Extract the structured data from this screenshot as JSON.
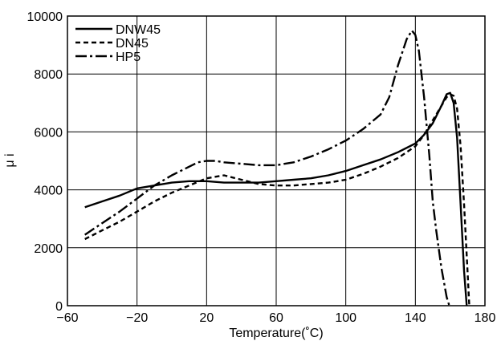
{
  "chart_data": {
    "type": "line",
    "title": "",
    "xlabel": "Temperature(˚C)",
    "ylabel": "μ i",
    "xlim": [
      -60,
      180
    ],
    "ylim": [
      0,
      10000
    ],
    "x_ticks": [
      "−60",
      "−20",
      "20",
      "60",
      "100",
      "140",
      "180"
    ],
    "x_tick_values": [
      -60,
      -20,
      20,
      60,
      100,
      140,
      180
    ],
    "y_ticks": [
      "0",
      "2000",
      "4000",
      "6000",
      "8000",
      "10000"
    ],
    "y_tick_values": [
      0,
      2000,
      4000,
      6000,
      8000,
      10000
    ],
    "grid": true,
    "legend_position": "top-left",
    "series": [
      {
        "name": "DNW45",
        "dash": "solid",
        "x": [
          -50,
          -40,
          -30,
          -20,
          -10,
          0,
          10,
          20,
          30,
          40,
          50,
          60,
          70,
          80,
          90,
          100,
          110,
          120,
          130,
          140,
          145,
          150,
          155,
          158,
          160,
          162,
          164,
          166,
          168,
          169.5
        ],
        "y": [
          3400,
          3600,
          3800,
          4050,
          4150,
          4250,
          4300,
          4300,
          4250,
          4250,
          4250,
          4300,
          4350,
          4400,
          4500,
          4650,
          4850,
          5050,
          5300,
          5600,
          5900,
          6300,
          6900,
          7300,
          7350,
          7000,
          5800,
          3500,
          1200,
          0
        ]
      },
      {
        "name": "DN45",
        "dash": "dashed",
        "x": [
          -50,
          -40,
          -30,
          -20,
          -10,
          0,
          10,
          20,
          30,
          40,
          50,
          60,
          70,
          80,
          90,
          100,
          110,
          120,
          130,
          140,
          145,
          150,
          155,
          158,
          160,
          162,
          164,
          166,
          168,
          170,
          171
        ],
        "y": [
          2300,
          2600,
          2900,
          3250,
          3600,
          3900,
          4150,
          4400,
          4500,
          4350,
          4200,
          4150,
          4150,
          4200,
          4250,
          4350,
          4550,
          4800,
          5100,
          5500,
          5900,
          6400,
          6900,
          7200,
          7300,
          7250,
          6800,
          5500,
          3500,
          1200,
          0
        ]
      },
      {
        "name": "HP5",
        "dash": "dash-dot",
        "x": [
          -50,
          -40,
          -30,
          -20,
          -10,
          0,
          10,
          15,
          20,
          25,
          30,
          40,
          50,
          60,
          70,
          80,
          90,
          100,
          110,
          120,
          125,
          130,
          135,
          138,
          140,
          142,
          145,
          148,
          150,
          152,
          155,
          158,
          159.5
        ],
        "y": [
          2450,
          2850,
          3250,
          3700,
          4150,
          4500,
          4800,
          4950,
          5000,
          5000,
          4950,
          4900,
          4850,
          4850,
          4950,
          5150,
          5400,
          5700,
          6100,
          6600,
          7200,
          8300,
          9200,
          9500,
          9350,
          8800,
          7200,
          5200,
          3600,
          2600,
          1300,
          300,
          0
        ]
      }
    ]
  }
}
